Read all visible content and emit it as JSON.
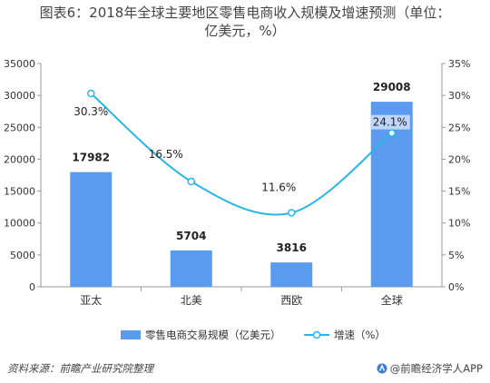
{
  "title_lines": [
    "图表6：2018年全球主要地区零售电商收入规模及增速预测（单位：",
    "亿美元，%）"
  ],
  "chart_data": {
    "type": "bar",
    "categories": [
      "亚太",
      "北美",
      "西欧",
      "全球"
    ],
    "series": [
      {
        "name": "零售电商交易规模（亿美元）",
        "type": "bar",
        "axis": "left",
        "color": "#5b9bef",
        "values": [
          17982,
          5704,
          3816,
          29008
        ],
        "labels": [
          "17982",
          "5704",
          "3816",
          "29008"
        ]
      },
      {
        "name": "增速（%）",
        "type": "line",
        "axis": "right",
        "color": "#29b6e6",
        "values": [
          30.3,
          16.5,
          11.6,
          24.1
        ],
        "labels": [
          "30.3%",
          "16.5%",
          "11.6%",
          "24.1%"
        ]
      }
    ],
    "y_left": {
      "min": 0,
      "max": 35000,
      "ticks": [
        "0",
        "5000",
        "10000",
        "15000",
        "20000",
        "25000",
        "30000",
        "35000"
      ]
    },
    "y_right": {
      "min": 0,
      "max": 35,
      "ticks": [
        "0%",
        "5%",
        "10%",
        "15%",
        "20%",
        "25%",
        "30%",
        "35%"
      ]
    },
    "legend_position": "bottom",
    "grid": false
  },
  "footer": {
    "source": "资料来源：前瞻产业研究院整理",
    "brand": "@前瞻经济学人APP"
  }
}
